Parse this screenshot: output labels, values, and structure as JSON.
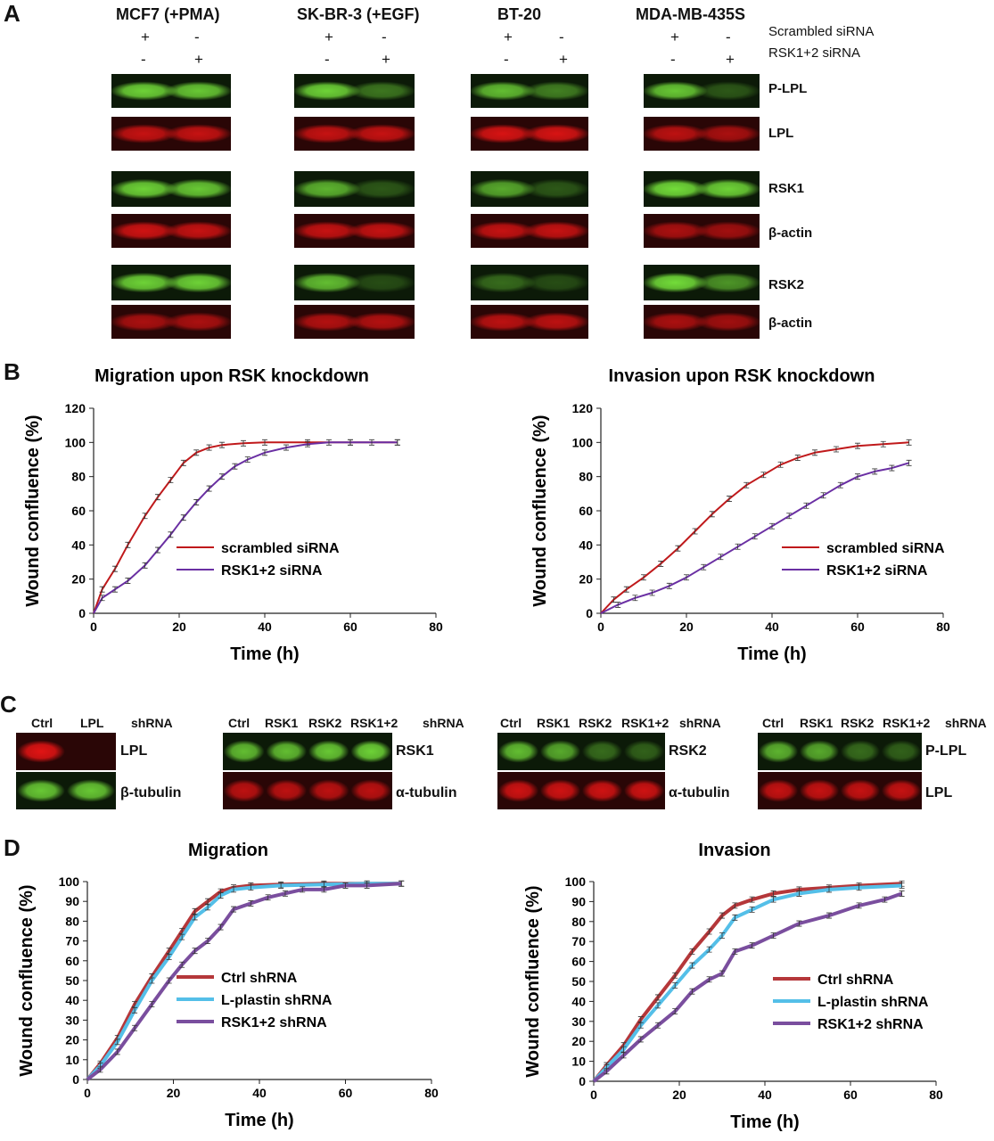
{
  "panels": {
    "a": "A",
    "b": "B",
    "c": "C",
    "d": "D"
  },
  "panel_a": {
    "cell_lines": [
      "MCF7 (+PMA)",
      "SK-BR-3 (+EGF)",
      "BT-20",
      "MDA-MB-435S"
    ],
    "treatment_labels": [
      "Scrambled siRNA",
      "RSK1+2 siRNA"
    ],
    "row1_signs": [
      "+",
      "-"
    ],
    "row2_signs": [
      "-",
      "+"
    ],
    "blot_labels": [
      "P-LPL",
      "LPL",
      "RSK1",
      "β-actin",
      "RSK2",
      "β-actin"
    ]
  },
  "panel_c": {
    "groups": [
      {
        "lanes": [
          "Ctrl",
          "LPL",
          "shRNA"
        ],
        "top": "LPL",
        "bottom": "β-tubulin"
      },
      {
        "lanes": [
          "Ctrl",
          "RSK1",
          "RSK2",
          "RSK1+2",
          "shRNA"
        ],
        "top": "RSK1",
        "bottom": "α-tubulin"
      },
      {
        "lanes": [
          "Ctrl",
          "RSK1",
          "RSK2",
          "RSK1+2",
          "shRNA"
        ],
        "top": "RSK2",
        "bottom": "α-tubulin"
      },
      {
        "lanes": [
          "Ctrl",
          "RSK1",
          "RSK2",
          "RSK1+2",
          "shRNA"
        ],
        "top": "P-LPL",
        "bottom": "LPL"
      }
    ]
  },
  "chart_data": [
    {
      "type": "line",
      "title": "Migration upon RSK knockdown",
      "xlabel": "Time (h)",
      "ylabel": "Wound confluence (%)",
      "xlim": [
        0,
        80
      ],
      "ylim": [
        0,
        120
      ],
      "xticks": [
        0,
        20,
        40,
        60,
        80
      ],
      "yticks": [
        0,
        20,
        40,
        60,
        80,
        100,
        120
      ],
      "legend_position": "center-right",
      "series": [
        {
          "name": "scrambled siRNA",
          "color": "#c0191b",
          "x": [
            0,
            2,
            5,
            8,
            12,
            15,
            18,
            21,
            24,
            27,
            30,
            35,
            40,
            50,
            60,
            71
          ],
          "y": [
            0,
            14,
            26,
            40,
            57,
            68,
            78,
            88,
            94,
            97,
            98.5,
            99.5,
            100,
            100,
            100,
            100
          ]
        },
        {
          "name": "RSK1+2 siRNA",
          "color": "#6a2fa3",
          "x": [
            0,
            2,
            5,
            8,
            12,
            15,
            18,
            21,
            24,
            27,
            30,
            33,
            36,
            40,
            45,
            50,
            55,
            60,
            65,
            71
          ],
          "y": [
            0,
            9,
            14,
            19,
            28,
            37,
            46,
            56,
            65,
            73,
            80,
            86,
            90,
            94,
            97,
            99,
            100,
            100,
            100,
            100
          ]
        }
      ]
    },
    {
      "type": "line",
      "title": "Invasion upon RSK knockdown",
      "xlabel": "Time (h)",
      "ylabel": "Wound confluence (%)",
      "xlim": [
        0,
        80
      ],
      "ylim": [
        0,
        120
      ],
      "xticks": [
        0,
        20,
        40,
        60,
        80
      ],
      "yticks": [
        0,
        20,
        40,
        60,
        80,
        100,
        120
      ],
      "legend_position": "center-right",
      "series": [
        {
          "name": "scrambled siRNA",
          "color": "#c0191b",
          "x": [
            0,
            3,
            6,
            10,
            14,
            18,
            22,
            26,
            30,
            34,
            38,
            42,
            46,
            50,
            55,
            60,
            66,
            72
          ],
          "y": [
            0,
            8,
            14,
            21,
            29,
            38,
            48,
            58,
            67,
            75,
            81,
            87,
            91,
            94,
            96,
            98,
            99,
            100
          ]
        },
        {
          "name": "RSK1+2 siRNA",
          "color": "#6a2fa3",
          "x": [
            0,
            4,
            8,
            12,
            16,
            20,
            24,
            28,
            32,
            36,
            40,
            44,
            48,
            52,
            56,
            60,
            64,
            68,
            72
          ],
          "y": [
            0,
            5,
            9,
            12,
            16,
            21,
            27,
            33,
            39,
            45,
            51,
            57,
            63,
            69,
            75,
            80,
            83,
            85,
            88
          ]
        }
      ]
    },
    {
      "type": "line",
      "title": "Migration",
      "xlabel": "Time (h)",
      "ylabel": "Wound confluence (%)",
      "xlim": [
        0,
        80
      ],
      "ylim": [
        0,
        100
      ],
      "xticks": [
        0,
        20,
        40,
        60,
        80
      ],
      "yticks": [
        0,
        10,
        20,
        30,
        40,
        50,
        60,
        70,
        80,
        90,
        100
      ],
      "legend_position": "center-right",
      "series": [
        {
          "name": "Ctrl shRNA",
          "color": "#b5373a",
          "x": [
            0,
            3,
            7,
            11,
            15,
            19,
            22,
            25,
            28,
            31,
            34,
            38,
            45,
            55,
            65,
            73
          ],
          "y": [
            0,
            8,
            21,
            38,
            52,
            65,
            75,
            85,
            90,
            95,
            97,
            98,
            98.5,
            99,
            99,
            99
          ]
        },
        {
          "name": "L-plastin shRNA",
          "color": "#54bfe8",
          "x": [
            0,
            3,
            7,
            11,
            15,
            19,
            22,
            25,
            28,
            31,
            34,
            38,
            45,
            55,
            65,
            73
          ],
          "y": [
            0,
            7,
            19,
            35,
            50,
            62,
            72,
            82,
            87,
            93,
            96,
            97,
            98,
            98.5,
            99,
            99
          ]
        },
        {
          "name": "RSK1+2 shRNA",
          "color": "#7a4e9e",
          "x": [
            0,
            3,
            7,
            11,
            15,
            19,
            22,
            25,
            28,
            31,
            34,
            38,
            42,
            46,
            50,
            55,
            60,
            65,
            73
          ],
          "y": [
            0,
            5,
            14,
            26,
            38,
            50,
            58,
            65,
            70,
            77,
            86,
            89,
            92,
            94,
            96,
            96,
            98,
            98,
            99
          ]
        }
      ]
    },
    {
      "type": "line",
      "title": "Invasion",
      "xlabel": "Time (h)",
      "ylabel": "Wound confluence (%)",
      "xlim": [
        0,
        80
      ],
      "ylim": [
        0,
        100
      ],
      "xticks": [
        0,
        20,
        40,
        60,
        80
      ],
      "yticks": [
        0,
        10,
        20,
        30,
        40,
        50,
        60,
        70,
        80,
        90,
        100
      ],
      "legend_position": "center-right",
      "series": [
        {
          "name": "Ctrl shRNA",
          "color": "#b5373a",
          "x": [
            0,
            3,
            7,
            11,
            15,
            19,
            23,
            27,
            30,
            33,
            37,
            42,
            48,
            55,
            62,
            72
          ],
          "y": [
            0,
            8,
            18,
            31,
            42,
            53,
            65,
            75,
            83,
            88,
            91,
            94,
            96,
            97,
            98,
            99
          ]
        },
        {
          "name": "L-plastin shRNA",
          "color": "#54bfe8",
          "x": [
            0,
            3,
            7,
            11,
            15,
            19,
            23,
            27,
            30,
            33,
            37,
            42,
            48,
            55,
            62,
            72
          ],
          "y": [
            0,
            7,
            16,
            28,
            38,
            48,
            58,
            66,
            73,
            82,
            86,
            91,
            94,
            96,
            97,
            98
          ]
        },
        {
          "name": "RSK1+2 shRNA",
          "color": "#7a4e9e",
          "x": [
            0,
            3,
            7,
            11,
            15,
            19,
            23,
            27,
            30,
            33,
            37,
            42,
            48,
            55,
            62,
            68,
            72
          ],
          "y": [
            0,
            5,
            13,
            21,
            28,
            35,
            45,
            51,
            54,
            65,
            68,
            73,
            79,
            83,
            88,
            91,
            94
          ]
        }
      ]
    }
  ]
}
